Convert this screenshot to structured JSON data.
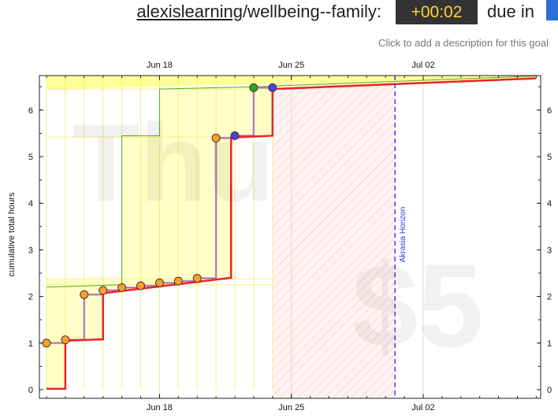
{
  "header": {
    "username": "alexislearning",
    "goal_slug": "/wellbeing--family:",
    "timer": "+00:02",
    "due_text": "due in",
    "description_prompt": "Click to add a description for this goal"
  },
  "watermarks": {
    "day": "Thu",
    "safety": "$5"
  },
  "colors": {
    "bright_red_line": "#ee2222",
    "datapoint_fill": "#f5a031",
    "datapoint_blue": "#4444dd",
    "datapoint_green": "#22aa22",
    "yellow_brick": "#ffff99",
    "green_line": "#55aa33",
    "purple_line": "#7744cc",
    "horizon": "#3333ee",
    "timer_bg": "#333333",
    "timer_fg": "#ffd23a"
  },
  "chart_data": {
    "type": "line",
    "title": "",
    "ylabel": "cumulative total hours",
    "xlabel": "",
    "ylim": [
      0,
      6.75
    ],
    "xlim_days": [
      "Jun 12",
      "Jul 07"
    ],
    "x_ticks": [
      {
        "day": 6,
        "label": "Jun 18"
      },
      {
        "day": 13,
        "label": "Jun 25"
      },
      {
        "day": 20,
        "label": "Jul 02"
      }
    ],
    "y_ticks": [
      0,
      1,
      2,
      3,
      4,
      5,
      6
    ],
    "horizon": {
      "day": 18.5,
      "label": "Akrasia Horizon"
    },
    "today_day": 12,
    "datapoints": [
      {
        "day": 0,
        "value": 1.0,
        "kind": "normal"
      },
      {
        "day": 1,
        "value": 1.07,
        "kind": "normal"
      },
      {
        "day": 2,
        "value": 2.04,
        "kind": "normal"
      },
      {
        "day": 3,
        "value": 2.13,
        "kind": "normal"
      },
      {
        "day": 4,
        "value": 2.19,
        "kind": "normal"
      },
      {
        "day": 5,
        "value": 2.23,
        "kind": "normal"
      },
      {
        "day": 6,
        "value": 2.29,
        "kind": "normal"
      },
      {
        "day": 7,
        "value": 2.33,
        "kind": "normal"
      },
      {
        "day": 8,
        "value": 2.39,
        "kind": "normal"
      },
      {
        "day": 9,
        "value": 5.4,
        "kind": "normal"
      },
      {
        "day": 10,
        "value": 5.45,
        "kind": "blue"
      },
      {
        "day": 11,
        "value": 6.48,
        "kind": "green"
      },
      {
        "day": 12,
        "value": 6.48,
        "kind": "blue"
      }
    ],
    "red_road": [
      [
        0,
        0.02
      ],
      [
        1,
        0.02
      ],
      [
        1,
        1.05
      ],
      [
        3,
        1.08
      ],
      [
        3,
        2.07
      ],
      [
        9.8,
        2.4
      ],
      [
        9.8,
        5.41
      ],
      [
        12,
        5.45
      ],
      [
        12,
        6.45
      ],
      [
        26,
        6.68
      ]
    ],
    "green_line": [
      [
        0,
        2.2
      ],
      [
        4,
        2.25
      ],
      [
        4,
        5.45
      ],
      [
        6,
        5.45
      ],
      [
        6,
        6.45
      ],
      [
        11,
        6.5
      ],
      [
        26,
        6.73
      ]
    ],
    "yellow_top": [
      [
        0,
        2.38
      ],
      [
        4,
        2.4
      ],
      [
        4,
        5.43
      ],
      [
        6,
        5.45
      ],
      [
        6,
        6.46
      ],
      [
        12,
        6.5
      ],
      [
        26,
        6.75
      ]
    ]
  }
}
